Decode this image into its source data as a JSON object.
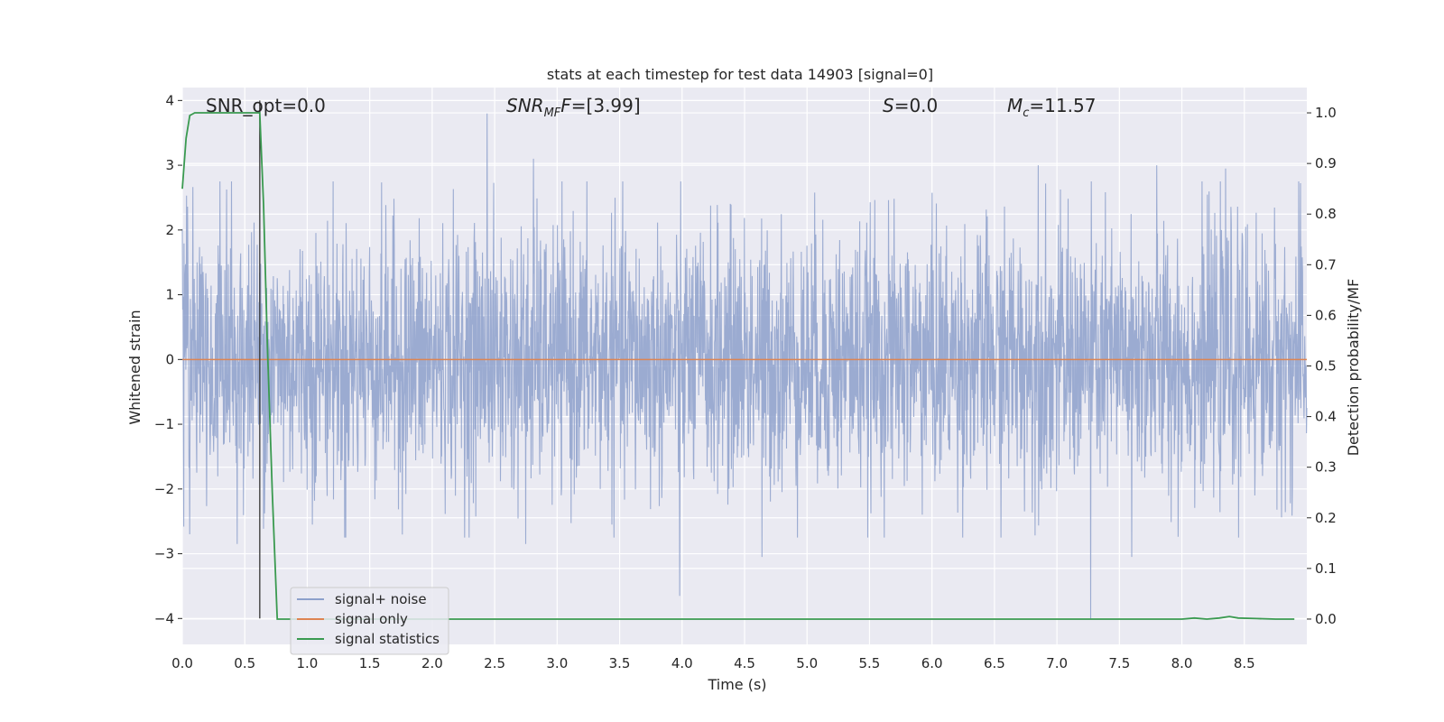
{
  "chart_data": {
    "type": "line",
    "title": "stats at each timestep for test data 14903 [signal=0]",
    "xlabel": "Time (s)",
    "ylabel": "Whitened strain",
    "ylabel_right": "Detection probability/MF",
    "xlim": [
      0.0,
      9.0
    ],
    "ylim": [
      -4.4,
      4.2
    ],
    "ylim_right": [
      -0.05,
      1.05
    ],
    "x_ticks": [
      "0.0",
      "0.5",
      "1.0",
      "1.5",
      "2.0",
      "2.5",
      "3.0",
      "3.5",
      "4.0",
      "4.5",
      "5.0",
      "5.5",
      "6.0",
      "6.5",
      "7.0",
      "7.5",
      "8.0",
      "8.5"
    ],
    "y_ticks": [
      "−4",
      "−3",
      "−2",
      "−1",
      "0",
      "1",
      "2",
      "3",
      "4"
    ],
    "y_ticks_right": [
      "0.0",
      "0.1",
      "0.2",
      "0.3",
      "0.4",
      "0.5",
      "0.6",
      "0.7",
      "0.8",
      "0.9",
      "1.0"
    ],
    "grid": true,
    "legend_position": "lower-left",
    "annotations": {
      "snr_opt": "SNR_opt=0.0",
      "snr_mf_label": "SNR",
      "snr_mf_sub": "MF",
      "snr_mf_value": "=[3.99]",
      "s_label": "S",
      "s_value": "=0.0",
      "mc_label": "M",
      "mc_sub": "c",
      "mc_value": "=11.57"
    },
    "series": [
      {
        "name": "signal+ noise",
        "color": "#8da0cb",
        "axis": "left",
        "amplitude_sigma": 1.0,
        "x_range": [
          0.0,
          9.0
        ],
        "peaks": [
          [
            2.44,
            3.8
          ],
          [
            2.81,
            3.1
          ],
          [
            6.85,
            3.0
          ],
          [
            7.8,
            3.0
          ],
          [
            8.35,
            2.95
          ],
          [
            3.98,
            -3.65
          ],
          [
            7.27,
            -4.0
          ],
          [
            7.6,
            -3.05
          ],
          [
            4.64,
            -3.05
          ],
          [
            0.44,
            -2.85
          ],
          [
            2.75,
            -2.85
          ],
          [
            0.06,
            -2.7
          ],
          [
            1.3,
            -2.75
          ]
        ]
      },
      {
        "name": "signal only",
        "color": "#dd8452",
        "axis": "left",
        "x": [
          0.0,
          9.0
        ],
        "y": [
          0.0,
          0.0
        ]
      },
      {
        "name": "signal statistics",
        "color": "#3a9a50",
        "axis": "right",
        "x": [
          0.0,
          0.03,
          0.06,
          0.1,
          0.2,
          0.3,
          0.4,
          0.5,
          0.6,
          0.62,
          0.65,
          0.68,
          0.72,
          0.76,
          1.0,
          2.0,
          3.0,
          4.0,
          5.0,
          6.0,
          7.0,
          7.8,
          8.0,
          8.1,
          8.2,
          8.3,
          8.38,
          8.45,
          8.6,
          8.75,
          8.9
        ],
        "y": [
          0.85,
          0.95,
          0.995,
          1.0,
          1.0,
          1.0,
          1.0,
          1.0,
          1.0,
          1.0,
          0.82,
          0.55,
          0.25,
          0.0,
          0.0,
          0.0,
          0.0,
          0.0,
          0.0,
          0.0,
          0.0,
          0.0,
          0.0,
          0.002,
          0.0,
          0.002,
          0.005,
          0.002,
          0.001,
          0.0,
          0.0
        ]
      }
    ],
    "vertical_line": {
      "x": 0.62,
      "y_range": [
        -4.0,
        4.0
      ],
      "color": "#333333"
    }
  }
}
